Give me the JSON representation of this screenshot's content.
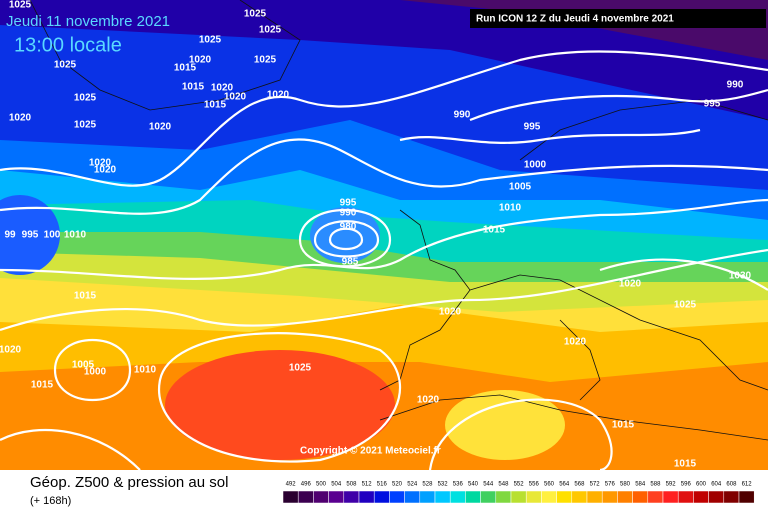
{
  "header": {
    "date": "Jeudi 11 novembre 2021",
    "time": "13:00 locale",
    "run": "Run ICON 12 Z du Jeudi 4 novembre 2021"
  },
  "isobars": [
    1025,
    1025,
    1025,
    1025,
    1025,
    1020,
    1015,
    1025,
    1015,
    1020,
    1020,
    1020,
    1015,
    1025,
    1025,
    1020,
    1020,
    1020,
    1020,
    990,
    995,
    995,
    990,
    1000,
    1005,
    1010,
    1015,
    995,
    990,
    980,
    985,
    99,
    995,
    100,
    1010,
    1015,
    1020,
    1020,
    1025,
    1030,
    1020,
    1020,
    1005,
    1000,
    1010,
    1015,
    1025,
    1020,
    1015,
    1015
  ],
  "copyright": "Copyright © 2021 Meteociel.fr",
  "footer": {
    "title": "Géop. Z500 & pression au sol",
    "subtitle": "(+ 168h)"
  },
  "legend": {
    "scale": [
      492,
      496,
      500,
      504,
      508,
      512,
      516,
      520,
      524,
      528,
      532,
      536,
      540,
      544,
      548,
      552,
      556,
      560,
      564,
      568,
      572,
      576,
      580,
      584,
      588,
      592,
      596,
      600,
      604,
      608,
      612
    ]
  }
}
